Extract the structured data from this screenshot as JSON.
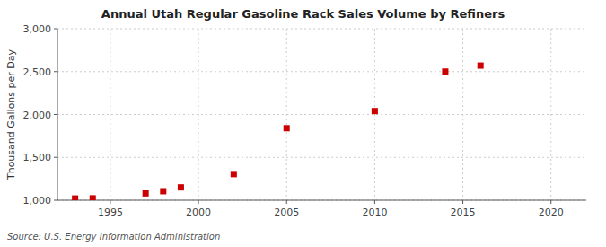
{
  "chart_data": {
    "type": "scatter",
    "title": "Annual Utah Regular Gasoline Rack Sales Volume by Refiners",
    "ylabel": "Thousand Gallons per Day",
    "annotations": [
      "Source: U.S. Energy Information Administration"
    ],
    "x": [
      1993,
      1994,
      1997,
      1998,
      1999,
      2002,
      2005,
      2010,
      2014,
      2016
    ],
    "values": [
      1020,
      1022,
      1080,
      1105,
      1150,
      1305,
      1840,
      2040,
      2500,
      2570
    ],
    "color": "#cc0000",
    "marker": "square",
    "xlim": [
      1992,
      2022
    ],
    "ylim": [
      1000,
      3000
    ],
    "xticks": [
      1995,
      2000,
      2005,
      2010,
      2015,
      2020
    ],
    "yticks": [
      {
        "value": 1000,
        "label": "1,000"
      },
      {
        "value": 1500,
        "label": "1,500"
      },
      {
        "value": 2000,
        "label": "2,000"
      },
      {
        "value": 2500,
        "label": "2,500"
      },
      {
        "value": 3000,
        "label": "3,000"
      }
    ],
    "grid": true
  }
}
